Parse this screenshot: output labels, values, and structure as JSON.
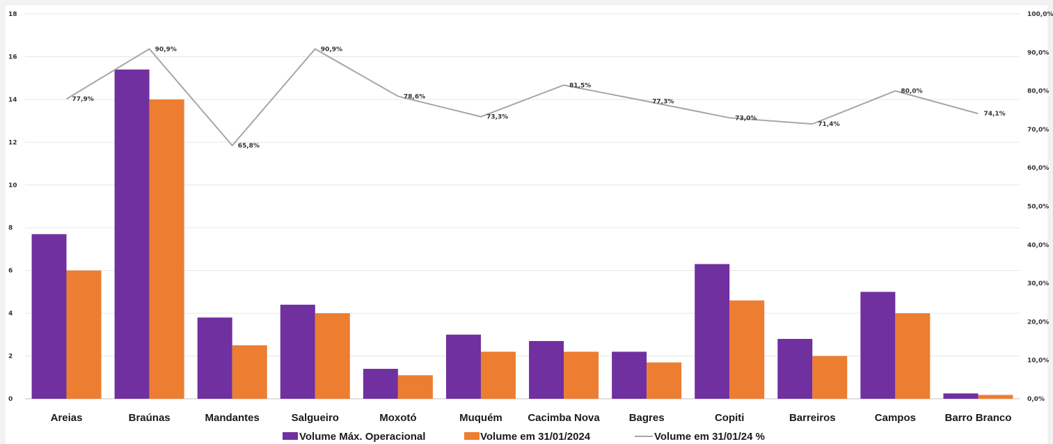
{
  "chart_data": {
    "type": "bar",
    "categories": [
      "Areias",
      "Braúnas",
      "Mandantes",
      "Salgueiro",
      "Moxotó",
      "Muquém",
      "Cacimba Nova",
      "Bagres",
      "Copiti",
      "Barreiros",
      "Campos",
      "Barro Branco"
    ],
    "series": [
      {
        "name": "Volume Máx. Operacional",
        "type": "bar",
        "axis": "left",
        "color": "#7030a0",
        "values": [
          7.7,
          15.4,
          3.8,
          4.4,
          1.4,
          3.0,
          2.7,
          2.2,
          6.3,
          2.8,
          5.0,
          0.25
        ]
      },
      {
        "name": "Volume em 31/01/2024",
        "type": "bar",
        "axis": "left",
        "color": "#ed7d31",
        "values": [
          6.0,
          14.0,
          2.5,
          4.0,
          1.1,
          2.2,
          2.2,
          1.7,
          4.6,
          2.0,
          4.0,
          0.18
        ]
      },
      {
        "name": "Volume em 31/01/24 %",
        "type": "line",
        "axis": "right",
        "color": "#a6a6a6",
        "values": [
          77.9,
          90.9,
          65.8,
          90.9,
          78.6,
          73.3,
          81.5,
          77.3,
          73.0,
          71.4,
          80.0,
          74.1
        ],
        "labels": [
          "77,9%",
          "90,9%",
          "65,8%",
          "90,9%",
          "78,6%",
          "73,3%",
          "81,5%",
          "77,3%",
          "73,0%",
          "71,4%",
          "80,0%",
          "74,1%"
        ]
      }
    ],
    "ylim": [
      0,
      18
    ],
    "y_ticks": [
      "0",
      "2",
      "4",
      "6",
      "8",
      "10",
      "12",
      "14",
      "16",
      "18"
    ],
    "y2lim": [
      0,
      100
    ],
    "y2_ticks": [
      "0,0%",
      "10,0%",
      "20,0%",
      "30,0%",
      "40,0%",
      "50,0%",
      "60,0%",
      "70,0%",
      "80,0%",
      "90,0%",
      "100,0%"
    ],
    "title": "",
    "xlabel": "",
    "ylabel": "",
    "grid": true,
    "legend": "bottom"
  }
}
